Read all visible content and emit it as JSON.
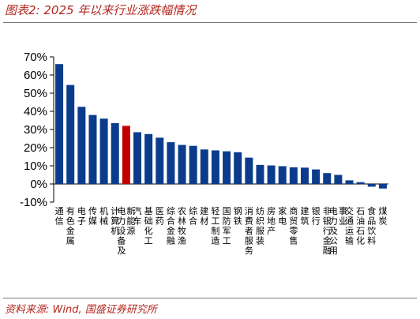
{
  "header": {
    "title": "图表2: 2025 年以来行业涨跌幅情况"
  },
  "footer": {
    "source": "资料来源: Wind, 国盛证券研究所"
  },
  "colors": {
    "bar": "#0b3c8c",
    "highlight": "#c00000",
    "accent": "#b3261e"
  },
  "chart_data": {
    "type": "bar",
    "title": "",
    "xlabel": "",
    "ylabel": "",
    "ylim": [
      -0.1,
      0.7
    ],
    "yticks": [
      0.7,
      0.6,
      0.5,
      0.4,
      0.3,
      0.2,
      0.1,
      0.0,
      -0.1
    ],
    "ytick_labels": [
      "70%",
      "60%",
      "50%",
      "40%",
      "30%",
      "20%",
      "10%",
      "0%",
      "-10%"
    ],
    "grid": false,
    "highlight_category": "电力设备及新能源",
    "categories": [
      "通信",
      "有色金属",
      "电子",
      "传媒",
      "机械",
      "计算机",
      "电力设备及新能源",
      "汽车",
      "基础化工",
      "医药",
      "综合金融",
      "农林牧渔",
      "综合",
      "建材",
      "轻工制造",
      "国防军工",
      "钢铁",
      "消费者服务",
      "纺织服装",
      "房地产",
      "家电",
      "商贸零售",
      "建筑",
      "银行",
      "非银行金融",
      "电力及公用事业",
      "交通运输",
      "石油石化",
      "食品饮料",
      "煤炭"
    ],
    "values": [
      0.66,
      0.545,
      0.425,
      0.38,
      0.36,
      0.335,
      0.32,
      0.285,
      0.275,
      0.255,
      0.23,
      0.215,
      0.21,
      0.19,
      0.185,
      0.18,
      0.175,
      0.145,
      0.105,
      0.102,
      0.098,
      0.092,
      0.09,
      0.08,
      0.06,
      0.05,
      0.02,
      0.01,
      -0.015,
      -0.025
    ]
  }
}
